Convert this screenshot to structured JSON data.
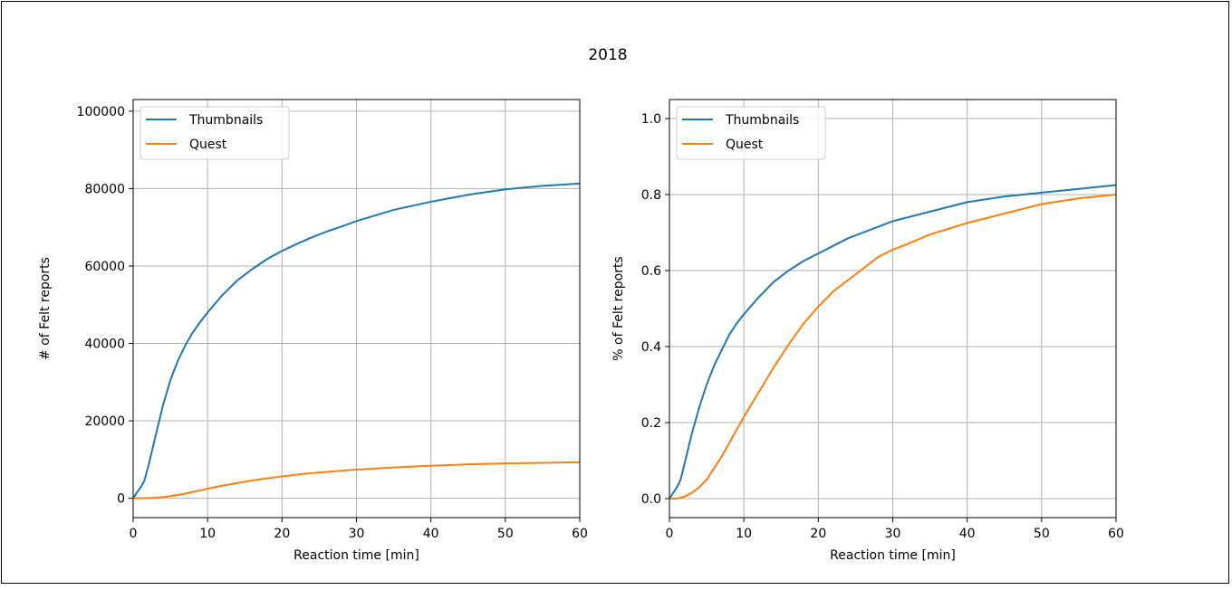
{
  "figure": {
    "suptitle": "2018"
  },
  "chart_data": [
    {
      "type": "line",
      "title": "",
      "xlabel": "Reaction time [min]",
      "ylabel": "# of Felt reports",
      "xlim": [
        0,
        60
      ],
      "ylim": [
        -5000,
        103000
      ],
      "xticks": [
        0,
        10,
        20,
        30,
        40,
        50,
        60
      ],
      "yticks": [
        0,
        20000,
        40000,
        60000,
        80000,
        100000
      ],
      "grid": true,
      "legend": "upper left",
      "series": [
        {
          "name": "Thumbnails",
          "color": "#1f77b4",
          "x": [
            0,
            0.5,
            1,
            1.5,
            2,
            3,
            4,
            5,
            6,
            7,
            8,
            9,
            10,
            12,
            14,
            16,
            18,
            20,
            22,
            24,
            26,
            28,
            30,
            35,
            40,
            45,
            50,
            55,
            60
          ],
          "y": [
            0,
            1500,
            2800,
            4500,
            8000,
            16000,
            24000,
            30500,
            35500,
            39500,
            42800,
            45500,
            48000,
            52500,
            56300,
            59200,
            61800,
            63900,
            65700,
            67400,
            68900,
            70200,
            71600,
            74500,
            76600,
            78400,
            79800,
            80700,
            81300
          ]
        },
        {
          "name": "Quest",
          "color": "#ff7f0e",
          "x": [
            0,
            1,
            2,
            3,
            4,
            5,
            6,
            7,
            8,
            9,
            10,
            12,
            14,
            16,
            18,
            20,
            22,
            24,
            26,
            28,
            30,
            35,
            40,
            45,
            50,
            55,
            60
          ],
          "y": [
            0,
            0,
            50,
            150,
            300,
            550,
            850,
            1200,
            1600,
            2000,
            2450,
            3250,
            3950,
            4600,
            5150,
            5650,
            6100,
            6500,
            6800,
            7100,
            7400,
            7950,
            8400,
            8750,
            9000,
            9150,
            9300
          ]
        }
      ]
    },
    {
      "type": "line",
      "title": "",
      "xlabel": "Reaction time [min]",
      "ylabel": "% of Felt reports",
      "xlim": [
        0,
        60
      ],
      "ylim": [
        -0.05,
        1.05
      ],
      "xticks": [
        0,
        10,
        20,
        30,
        40,
        50,
        60
      ],
      "yticks": [
        0.0,
        0.2,
        0.4,
        0.6,
        0.8,
        1.0
      ],
      "ytick_labels": [
        "0.0",
        "0.2",
        "0.4",
        "0.6",
        "0.8",
        "1.0"
      ],
      "grid": true,
      "legend": "upper left",
      "series": [
        {
          "name": "Thumbnails",
          "color": "#1f77b4",
          "x": [
            0,
            0.5,
            1,
            1.5,
            2,
            3,
            4,
            5,
            6,
            7,
            8,
            9,
            10,
            12,
            14,
            16,
            18,
            20,
            22,
            24,
            26,
            28,
            30,
            35,
            40,
            45,
            50,
            55,
            60
          ],
          "y": [
            0,
            0.015,
            0.03,
            0.05,
            0.09,
            0.17,
            0.24,
            0.3,
            0.35,
            0.39,
            0.43,
            0.46,
            0.485,
            0.53,
            0.57,
            0.6,
            0.625,
            0.645,
            0.665,
            0.685,
            0.7,
            0.715,
            0.73,
            0.755,
            0.78,
            0.795,
            0.805,
            0.815,
            0.825
          ]
        },
        {
          "name": "Quest",
          "color": "#ff7f0e",
          "x": [
            0,
            1,
            2,
            3,
            4,
            5,
            6,
            7,
            8,
            9,
            10,
            12,
            14,
            16,
            18,
            20,
            22,
            24,
            26,
            28,
            30,
            32,
            35,
            40,
            45,
            48,
            50,
            55,
            60
          ],
          "y": [
            0,
            0,
            0.005,
            0.015,
            0.03,
            0.05,
            0.08,
            0.11,
            0.145,
            0.18,
            0.215,
            0.28,
            0.345,
            0.405,
            0.46,
            0.505,
            0.545,
            0.575,
            0.605,
            0.635,
            0.655,
            0.67,
            0.695,
            0.725,
            0.75,
            0.765,
            0.775,
            0.79,
            0.8
          ]
        }
      ]
    }
  ]
}
